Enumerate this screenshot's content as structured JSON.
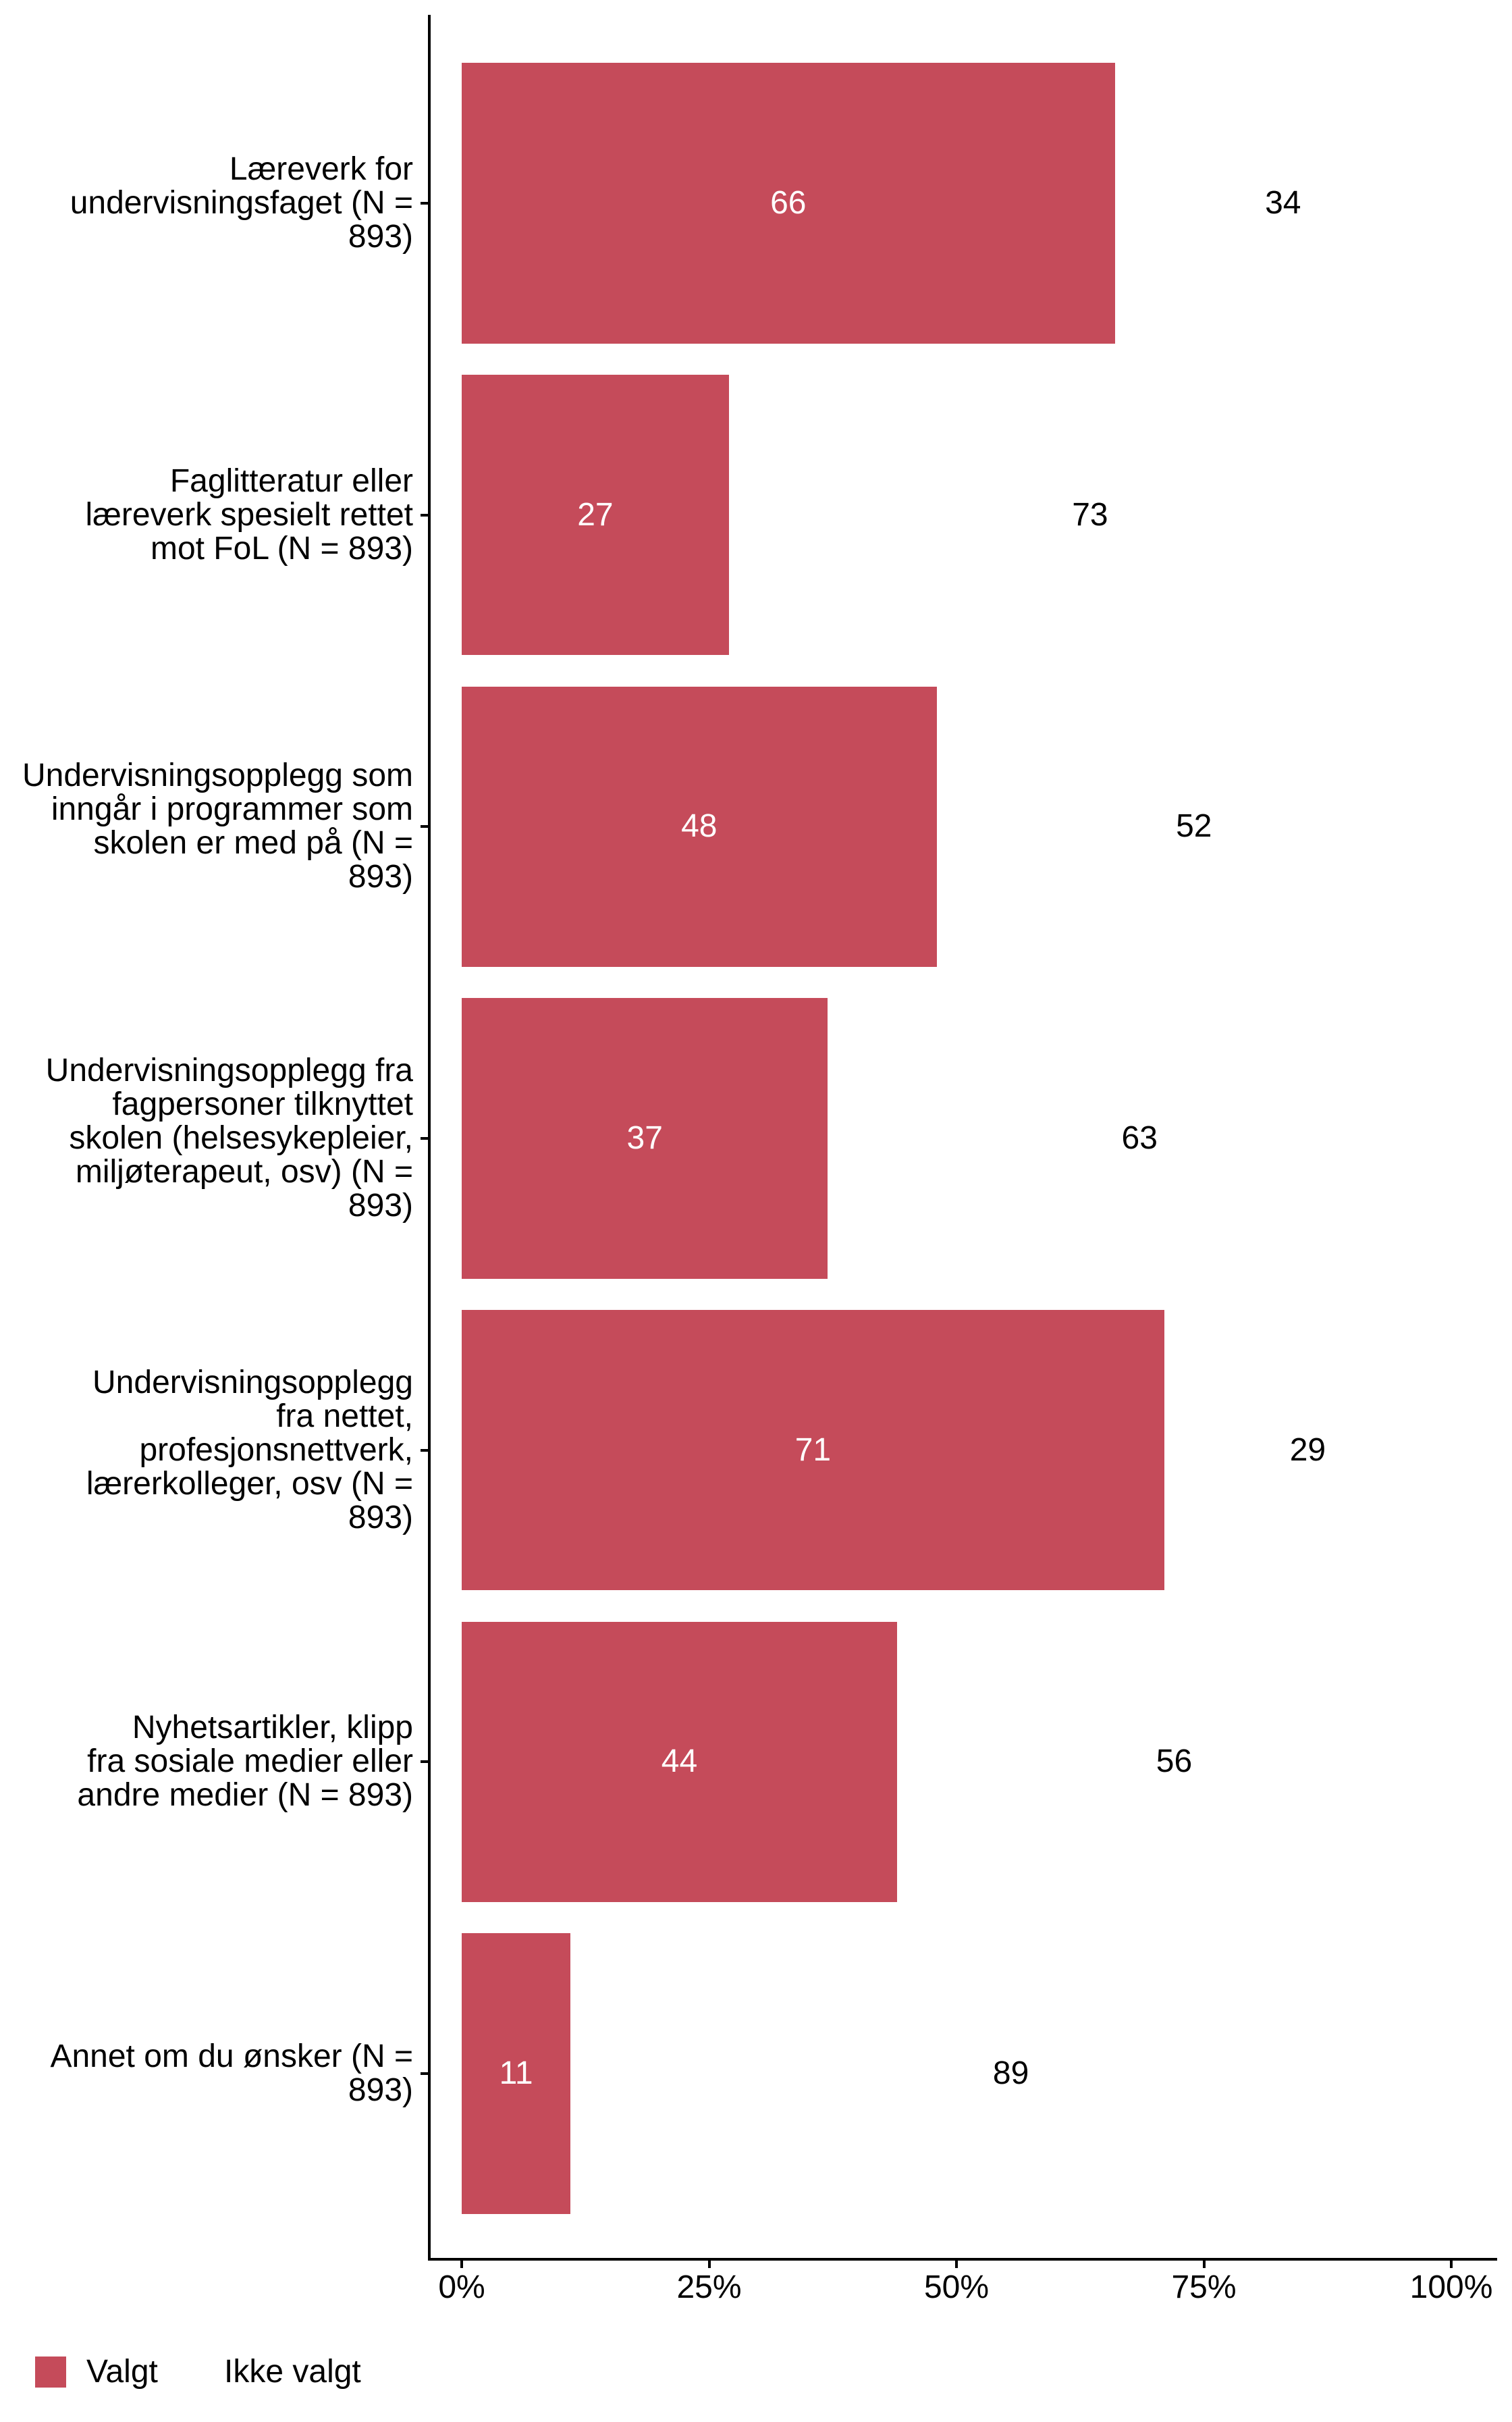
{
  "chart_data": {
    "type": "bar",
    "orientation": "horizontal",
    "stacked": true,
    "categories": [
      {
        "label_lines": [
          "Læreverk for",
          "undervisningsfaget (N =",
          "893)"
        ],
        "valgt": 66,
        "ikke_valgt": 34
      },
      {
        "label_lines": [
          "Faglitteratur eller",
          "læreverk spesielt rettet",
          "mot FoL (N = 893)"
        ],
        "valgt": 27,
        "ikke_valgt": 73
      },
      {
        "label_lines": [
          "Undervisningsopplegg som",
          "inngår i programmer som",
          "skolen er med på (N =",
          "893)"
        ],
        "valgt": 48,
        "ikke_valgt": 52
      },
      {
        "label_lines": [
          "Undervisningsopplegg fra",
          "fagpersoner tilknyttet",
          "skolen (helsesykepleier,",
          "miljøterapeut, osv) (N =",
          "893)"
        ],
        "valgt": 37,
        "ikke_valgt": 63
      },
      {
        "label_lines": [
          "Undervisningsopplegg",
          "fra nettet,",
          "profesjonsnettverk,",
          "lærerkolleger, osv (N =",
          "893)"
        ],
        "valgt": 71,
        "ikke_valgt": 29
      },
      {
        "label_lines": [
          "Nyhetsartikler, klipp",
          "fra sosiale medier eller",
          "andre medier (N = 893)"
        ],
        "valgt": 44,
        "ikke_valgt": 56
      },
      {
        "label_lines": [
          "Annet om du ønsker (N =",
          "893)"
        ],
        "valgt": 11,
        "ikke_valgt": 89
      }
    ],
    "series": [
      {
        "name": "Valgt",
        "color": "#c54b5a"
      },
      {
        "name": "Ikke valgt",
        "color": "#ffffff"
      }
    ],
    "x_ticks": [
      {
        "value": 0,
        "label": "0%"
      },
      {
        "value": 25,
        "label": "25%"
      },
      {
        "value": 50,
        "label": "50%"
      },
      {
        "value": 75,
        "label": "75%"
      },
      {
        "value": 100,
        "label": "100%"
      }
    ],
    "xlim": [
      0,
      100
    ],
    "grid": false,
    "legend_position": "bottom-left",
    "legend": {
      "items": [
        {
          "label": "Valgt",
          "color": "#c54b5a"
        },
        {
          "label": "Ikke valgt",
          "color": "#ffffff"
        }
      ]
    },
    "bar_label_color_inside": "#ffffff",
    "bar_label_color_outside": "#000000",
    "axis_color": "#000000"
  }
}
